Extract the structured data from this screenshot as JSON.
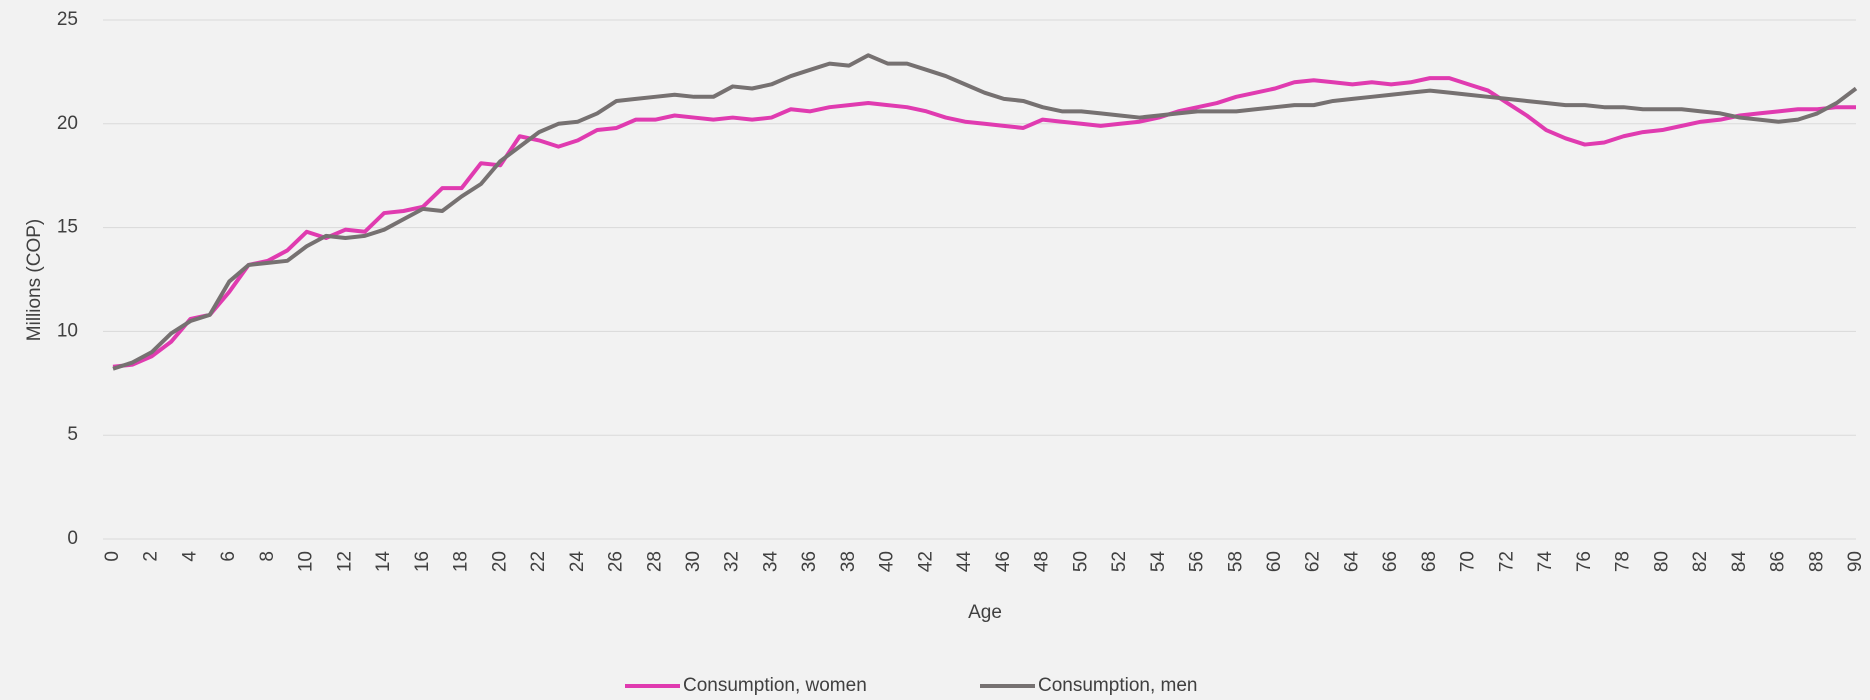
{
  "chart_data": {
    "type": "line",
    "x": [
      0,
      1,
      2,
      3,
      4,
      5,
      6,
      7,
      8,
      9,
      10,
      11,
      12,
      13,
      14,
      15,
      16,
      17,
      18,
      19,
      20,
      21,
      22,
      23,
      24,
      25,
      26,
      27,
      28,
      29,
      30,
      31,
      32,
      33,
      34,
      35,
      36,
      37,
      38,
      39,
      40,
      41,
      42,
      43,
      44,
      45,
      46,
      47,
      48,
      49,
      50,
      51,
      52,
      53,
      54,
      55,
      56,
      57,
      58,
      59,
      60,
      61,
      62,
      63,
      64,
      65,
      66,
      67,
      68,
      69,
      70,
      71,
      72,
      73,
      74,
      75,
      76,
      77,
      78,
      79,
      80,
      81,
      82,
      83,
      84,
      85,
      86,
      87,
      88,
      89,
      90
    ],
    "series": [
      {
        "name": "Consumption, women",
        "color": "#e03bb0",
        "values": [
          8.3,
          8.4,
          8.8,
          9.5,
          10.6,
          10.8,
          11.9,
          13.2,
          13.4,
          13.9,
          14.8,
          14.5,
          14.9,
          14.8,
          15.7,
          15.8,
          16.0,
          16.9,
          16.9,
          18.1,
          18.0,
          19.4,
          19.2,
          18.9,
          19.2,
          19.7,
          19.8,
          20.2,
          20.2,
          20.4,
          20.3,
          20.2,
          20.3,
          20.2,
          20.3,
          20.7,
          20.6,
          20.8,
          20.9,
          21.0,
          20.9,
          20.8,
          20.6,
          20.3,
          20.1,
          20.0,
          19.9,
          19.8,
          20.2,
          20.1,
          20.0,
          19.9,
          20.0,
          20.1,
          20.3,
          20.6,
          20.8,
          21.0,
          21.3,
          21.5,
          21.7,
          22.0,
          22.1,
          22.0,
          21.9,
          22.0,
          21.9,
          22.0,
          22.2,
          22.2,
          21.9,
          21.6,
          21.0,
          20.4,
          19.7,
          19.3,
          19.0,
          19.1,
          19.4,
          19.6,
          19.7,
          19.9,
          20.1,
          20.2,
          20.4,
          20.5,
          20.6,
          20.7,
          20.7,
          20.8,
          20.8
        ]
      },
      {
        "name": "Consumption, men",
        "color": "#767171",
        "values": [
          8.2,
          8.5,
          9.0,
          9.9,
          10.5,
          10.8,
          12.4,
          13.2,
          13.3,
          13.4,
          14.1,
          14.6,
          14.5,
          14.6,
          14.9,
          15.4,
          15.9,
          15.8,
          16.5,
          17.1,
          18.2,
          18.9,
          19.6,
          20.0,
          20.1,
          20.5,
          21.1,
          21.2,
          21.3,
          21.4,
          21.3,
          21.3,
          21.8,
          21.7,
          21.9,
          22.3,
          22.6,
          22.9,
          22.8,
          23.3,
          22.9,
          22.9,
          22.6,
          22.3,
          21.9,
          21.5,
          21.2,
          21.1,
          20.8,
          20.6,
          20.6,
          20.5,
          20.4,
          20.3,
          20.4,
          20.5,
          20.6,
          20.6,
          20.6,
          20.7,
          20.8,
          20.9,
          20.9,
          21.1,
          21.2,
          21.3,
          21.4,
          21.5,
          21.6,
          21.5,
          21.4,
          21.3,
          21.2,
          21.1,
          21.0,
          20.9,
          20.9,
          20.8,
          20.8,
          20.7,
          20.7,
          20.7,
          20.6,
          20.5,
          20.3,
          20.2,
          20.1,
          20.2,
          20.5,
          21.0,
          21.7
        ]
      }
    ],
    "xlabel": "Age",
    "ylabel": "Millions (COP)",
    "xlim": [
      0,
      90
    ],
    "xticks": [
      0,
      2,
      4,
      6,
      8,
      10,
      12,
      14,
      16,
      18,
      20,
      22,
      24,
      26,
      28,
      30,
      32,
      34,
      36,
      38,
      40,
      42,
      44,
      46,
      48,
      50,
      52,
      54,
      56,
      58,
      60,
      62,
      64,
      66,
      68,
      70,
      72,
      74,
      76,
      78,
      80,
      82,
      84,
      86,
      88,
      90
    ],
    "ylim": [
      0,
      25
    ],
    "yticks": [
      0,
      5,
      10,
      15,
      20,
      25
    ],
    "grid": true,
    "legend": "bottom"
  }
}
